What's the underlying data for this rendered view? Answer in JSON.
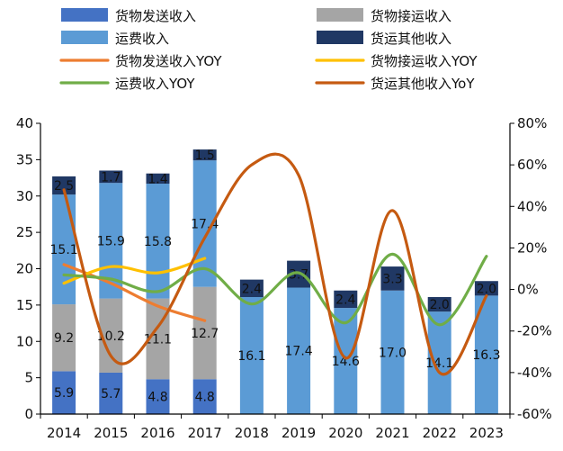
{
  "chart_data": {
    "type": "bar",
    "categories": [
      "2014",
      "2015",
      "2016",
      "2017",
      "2018",
      "2019",
      "2020",
      "2021",
      "2022",
      "2023"
    ],
    "series": [
      {
        "name": "货物发送收入",
        "kind": "bar",
        "axis": "left",
        "color": "#4472c4",
        "values": [
          5.9,
          5.7,
          4.8,
          4.8,
          null,
          null,
          null,
          null,
          null,
          null
        ]
      },
      {
        "name": "货物接运收入",
        "kind": "bar",
        "axis": "left",
        "color": "#a5a5a5",
        "values": [
          9.2,
          10.2,
          11.1,
          12.7,
          null,
          null,
          null,
          null,
          null,
          null
        ]
      },
      {
        "name": "运费收入",
        "kind": "bar",
        "axis": "left",
        "color": "#5b9bd5",
        "values": [
          15.1,
          15.9,
          15.8,
          17.4,
          16.1,
          17.4,
          14.6,
          17.0,
          14.1,
          16.3
        ]
      },
      {
        "name": "货运其他收入",
        "kind": "bar",
        "axis": "left",
        "color": "#203864",
        "values": [
          2.5,
          1.7,
          1.4,
          1.5,
          2.4,
          3.7,
          2.4,
          3.3,
          2.0,
          2.0
        ]
      },
      {
        "name": "货物发送收入YOY",
        "kind": "line",
        "axis": "right",
        "color": "#ed7d31",
        "values": [
          12,
          3,
          -8,
          -15,
          null,
          null,
          null,
          null,
          null,
          null
        ]
      },
      {
        "name": "货物接运收入YOY",
        "kind": "line",
        "axis": "right",
        "color": "#ffc000",
        "values": [
          3,
          11,
          8,
          15,
          null,
          null,
          null,
          null,
          null,
          null
        ]
      },
      {
        "name": "运费收入YOY",
        "kind": "line",
        "axis": "right",
        "color": "#70ad47",
        "values": [
          7,
          5,
          -1,
          10,
          -7,
          8,
          -16,
          17,
          -17,
          16
        ]
      },
      {
        "name": "货运其他收入YoY",
        "kind": "line",
        "axis": "right",
        "color": "#c55a11",
        "values": [
          48,
          -32,
          -18,
          25,
          60,
          55,
          -33,
          38,
          -40,
          -3
        ]
      }
    ],
    "y_left": {
      "min": 0,
      "max": 40,
      "step": 5,
      "ticks": [
        "0",
        "5",
        "10",
        "15",
        "20",
        "25",
        "30",
        "35",
        "40"
      ]
    },
    "y_right": {
      "min": -60,
      "max": 80,
      "step": 20,
      "ticks": [
        "-60%",
        "-40%",
        "-20%",
        "0%",
        "20%",
        "40%",
        "60%",
        "80%"
      ]
    },
    "legend_position": "top",
    "grid": false
  }
}
